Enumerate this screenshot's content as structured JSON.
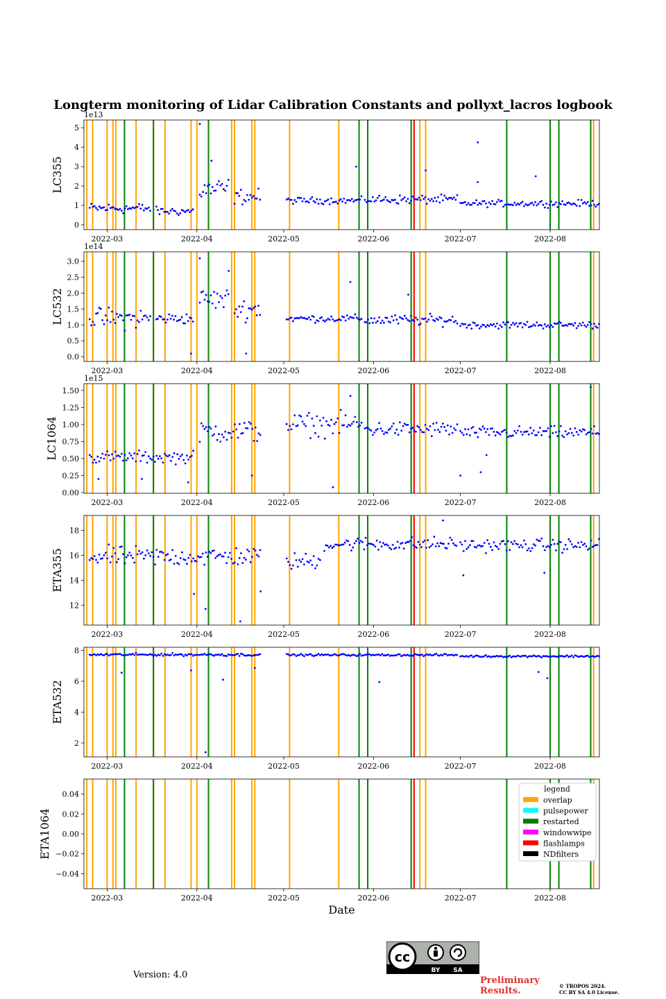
{
  "title": "Longterm monitoring of Lidar Calibration Constants and pollyxt_lacros logbook",
  "footer": {
    "version": "Version: 4.0",
    "preliminary_line1": "Preliminary",
    "preliminary_line2": "Results.",
    "copyright_line1": "© TROPOS 2024.",
    "copyright_line2": "CC BY SA 4.0 License.",
    "cc_logo_text": "cc",
    "cc_by": "BY",
    "cc_sa": "SA"
  },
  "colors": {
    "data": "#0000ff",
    "overlap": "#ffa500",
    "pulsepower": "#00ffff",
    "restarted": "#008000",
    "windowwipe": "#ff00ff",
    "flashlamps": "#ff0000",
    "NDfilters": "#000000"
  },
  "chart_data": {
    "type": "scatter",
    "xlabel": "Date",
    "x_ticks": [
      "2022-03",
      "2022-04",
      "2022-05",
      "2022-06",
      "2022-07",
      "2022-08"
    ],
    "x_tick_dates": [
      "2022-03-01",
      "2022-04-01",
      "2022-05-01",
      "2022-06-01",
      "2022-07-01",
      "2022-08-01"
    ],
    "xlim": [
      "2022-02-21",
      "2022-08-18"
    ],
    "logbook_events": {
      "overlap": [
        "2022-02-22",
        "2022-02-24",
        "2022-03-01",
        "2022-03-03",
        "2022-03-04",
        "2022-03-11",
        "2022-03-17",
        "2022-03-21",
        "2022-03-30",
        "2022-04-01",
        "2022-04-13",
        "2022-04-14",
        "2022-04-20",
        "2022-04-21",
        "2022-05-03",
        "2022-05-20",
        "2022-06-15",
        "2022-06-17",
        "2022-06-19",
        "2022-08-16"
      ],
      "pulsepower": [],
      "restarted": [
        "2022-03-07",
        "2022-03-17",
        "2022-04-05",
        "2022-05-27",
        "2022-05-30",
        "2022-06-14",
        "2022-07-17",
        "2022-08-01",
        "2022-08-04",
        "2022-08-15"
      ],
      "windowwipe": [],
      "flashlamps": [
        "2022-06-15"
      ],
      "NDfilters": []
    },
    "legend": {
      "title": "legend",
      "placement": "upper right of last panel",
      "entries": [
        "overlap",
        "pulsepower",
        "restarted",
        "windowwipe",
        "flashlamps",
        "NDfilters"
      ]
    },
    "panels": [
      {
        "ylabel": "LC355",
        "offset_text": "1e13",
        "ylim": [
          -0.25,
          5.4
        ],
        "yticks": [
          0,
          1,
          2,
          3,
          4,
          5
        ],
        "ytick_labels": [
          "0",
          "1",
          "2",
          "3",
          "4",
          "5"
        ],
        "segments": [
          {
            "start": "2022-02-23",
            "end": "2022-03-16",
            "base": 0.85,
            "spread": 0.25
          },
          {
            "start": "2022-03-18",
            "end": "2022-03-31",
            "base": 0.7,
            "spread": 0.2
          },
          {
            "start": "2022-04-02",
            "end": "2022-04-12",
            "base": 1.8,
            "spread": 0.55
          },
          {
            "start": "2022-04-14",
            "end": "2022-04-23",
            "base": 1.45,
            "spread": 0.35
          },
          {
            "start": "2022-05-02",
            "end": "2022-05-28",
            "base": 1.25,
            "spread": 0.15
          },
          {
            "start": "2022-05-29",
            "end": "2022-06-30",
            "base": 1.3,
            "spread": 0.2
          },
          {
            "start": "2022-07-01",
            "end": "2022-08-18",
            "base": 1.1,
            "spread": 0.15
          }
        ],
        "outliers": [
          {
            "x": "2022-04-02",
            "y": 5.2
          },
          {
            "x": "2022-07-07",
            "y": 4.25
          },
          {
            "x": "2022-06-19",
            "y": 2.8
          },
          {
            "x": "2022-05-26",
            "y": 3.0
          },
          {
            "x": "2022-07-27",
            "y": 2.5
          },
          {
            "x": "2022-04-06",
            "y": 3.3
          },
          {
            "x": "2022-07-07",
            "y": 2.2
          }
        ]
      },
      {
        "ylabel": "LC532",
        "offset_text": "1e14",
        "ylim": [
          -0.15,
          3.3
        ],
        "yticks": [
          0,
          0.5,
          1,
          1.5,
          2,
          2.5,
          3
        ],
        "ytick_labels": [
          "0.0",
          "0.5",
          "1.0",
          "1.5",
          "2.0",
          "2.5",
          "3.0"
        ],
        "segments": [
          {
            "start": "2022-02-23",
            "end": "2022-03-16",
            "base": 1.2,
            "spread": 0.3
          },
          {
            "start": "2022-03-18",
            "end": "2022-03-31",
            "base": 1.2,
            "spread": 0.15
          },
          {
            "start": "2022-04-02",
            "end": "2022-04-12",
            "base": 1.8,
            "spread": 0.3
          },
          {
            "start": "2022-04-14",
            "end": "2022-04-23",
            "base": 1.5,
            "spread": 0.3
          },
          {
            "start": "2022-05-02",
            "end": "2022-05-28",
            "base": 1.2,
            "spread": 0.1
          },
          {
            "start": "2022-05-29",
            "end": "2022-06-30",
            "base": 1.15,
            "spread": 0.15
          },
          {
            "start": "2022-07-01",
            "end": "2022-08-18",
            "base": 1.0,
            "spread": 0.1
          }
        ],
        "outliers": [
          {
            "x": "2022-04-02",
            "y": 3.1
          },
          {
            "x": "2022-04-12",
            "y": 2.7
          },
          {
            "x": "2022-05-24",
            "y": 2.35
          },
          {
            "x": "2022-03-30",
            "y": 0.1
          },
          {
            "x": "2022-04-18",
            "y": 0.1
          },
          {
            "x": "2022-06-13",
            "y": 1.95
          }
        ]
      },
      {
        "ylabel": "LC1064",
        "offset_text": "1e15",
        "ylim": [
          -0.01,
          1.6
        ],
        "yticks": [
          0,
          0.25,
          0.5,
          0.75,
          1.0,
          1.25,
          1.5
        ],
        "ytick_labels": [
          "0.00",
          "0.25",
          "0.50",
          "0.75",
          "1.00",
          "1.25",
          "1.50"
        ],
        "segments": [
          {
            "start": "2022-02-23",
            "end": "2022-03-31",
            "base": 0.52,
            "spread": 0.08
          },
          {
            "start": "2022-04-02",
            "end": "2022-04-23",
            "base": 0.9,
            "spread": 0.15
          },
          {
            "start": "2022-05-02",
            "end": "2022-05-28",
            "base": 1.0,
            "spread": 0.15
          },
          {
            "start": "2022-05-29",
            "end": "2022-06-30",
            "base": 0.93,
            "spread": 0.1
          },
          {
            "start": "2022-07-01",
            "end": "2022-08-18",
            "base": 0.88,
            "spread": 0.08
          }
        ],
        "outliers": [
          {
            "x": "2022-02-26",
            "y": 0.2
          },
          {
            "x": "2022-03-13",
            "y": 0.2
          },
          {
            "x": "2022-03-29",
            "y": 0.15
          },
          {
            "x": "2022-04-20",
            "y": 0.25
          },
          {
            "x": "2022-05-18",
            "y": 0.08
          },
          {
            "x": "2022-07-01",
            "y": 0.25
          },
          {
            "x": "2022-07-08",
            "y": 0.3
          },
          {
            "x": "2022-07-10",
            "y": 0.55
          },
          {
            "x": "2022-08-15",
            "y": 1.55
          },
          {
            "x": "2022-05-24",
            "y": 1.42
          }
        ]
      },
      {
        "ylabel": "ETA355",
        "offset_text": "",
        "ylim": [
          10.4,
          19.2
        ],
        "yticks": [
          12,
          14,
          16,
          18
        ],
        "ytick_labels": [
          "12",
          "14",
          "16",
          "18"
        ],
        "segments": [
          {
            "start": "2022-02-23",
            "end": "2022-04-23",
            "base": 15.9,
            "spread": 0.7
          },
          {
            "start": "2022-05-02",
            "end": "2022-05-14",
            "base": 15.5,
            "spread": 0.6
          },
          {
            "start": "2022-05-15",
            "end": "2022-06-30",
            "base": 16.9,
            "spread": 0.5
          },
          {
            "start": "2022-07-01",
            "end": "2022-08-18",
            "base": 16.8,
            "spread": 0.45
          }
        ],
        "outliers": [
          {
            "x": "2022-04-16",
            "y": 10.7
          },
          {
            "x": "2022-04-04",
            "y": 11.7
          },
          {
            "x": "2022-03-31",
            "y": 12.9
          },
          {
            "x": "2022-04-23",
            "y": 13.1
          },
          {
            "x": "2022-07-02",
            "y": 14.4
          },
          {
            "x": "2022-07-30",
            "y": 14.6
          },
          {
            "x": "2022-06-25",
            "y": 18.8
          }
        ]
      },
      {
        "ylabel": "ETA532",
        "offset_text": "",
        "ylim": [
          1.1,
          8.2
        ],
        "yticks": [
          2,
          4,
          6,
          8
        ],
        "ytick_labels": [
          "2",
          "4",
          "6",
          "8"
        ],
        "segments": [
          {
            "start": "2022-02-23",
            "end": "2022-04-23",
            "base": 7.72,
            "spread": 0.08
          },
          {
            "start": "2022-05-02",
            "end": "2022-06-30",
            "base": 7.7,
            "spread": 0.06
          },
          {
            "start": "2022-07-01",
            "end": "2022-08-18",
            "base": 7.62,
            "spread": 0.06
          }
        ],
        "outliers": [
          {
            "x": "2022-03-06",
            "y": 6.55
          },
          {
            "x": "2022-03-30",
            "y": 6.7
          },
          {
            "x": "2022-04-10",
            "y": 6.1
          },
          {
            "x": "2022-06-03",
            "y": 5.95
          },
          {
            "x": "2022-07-28",
            "y": 6.6
          },
          {
            "x": "2022-07-31",
            "y": 6.2
          },
          {
            "x": "2022-04-04",
            "y": 1.4
          },
          {
            "x": "2022-04-21",
            "y": 6.85
          }
        ]
      },
      {
        "ylabel": "ETA1064",
        "offset_text": "",
        "ylim": [
          -0.055,
          0.055
        ],
        "yticks": [
          -0.04,
          -0.02,
          0.0,
          0.02,
          0.04
        ],
        "ytick_labels": [
          "−0.04",
          "−0.02",
          "0.00",
          "0.02",
          "0.04"
        ],
        "segments": [],
        "outliers": []
      }
    ]
  }
}
